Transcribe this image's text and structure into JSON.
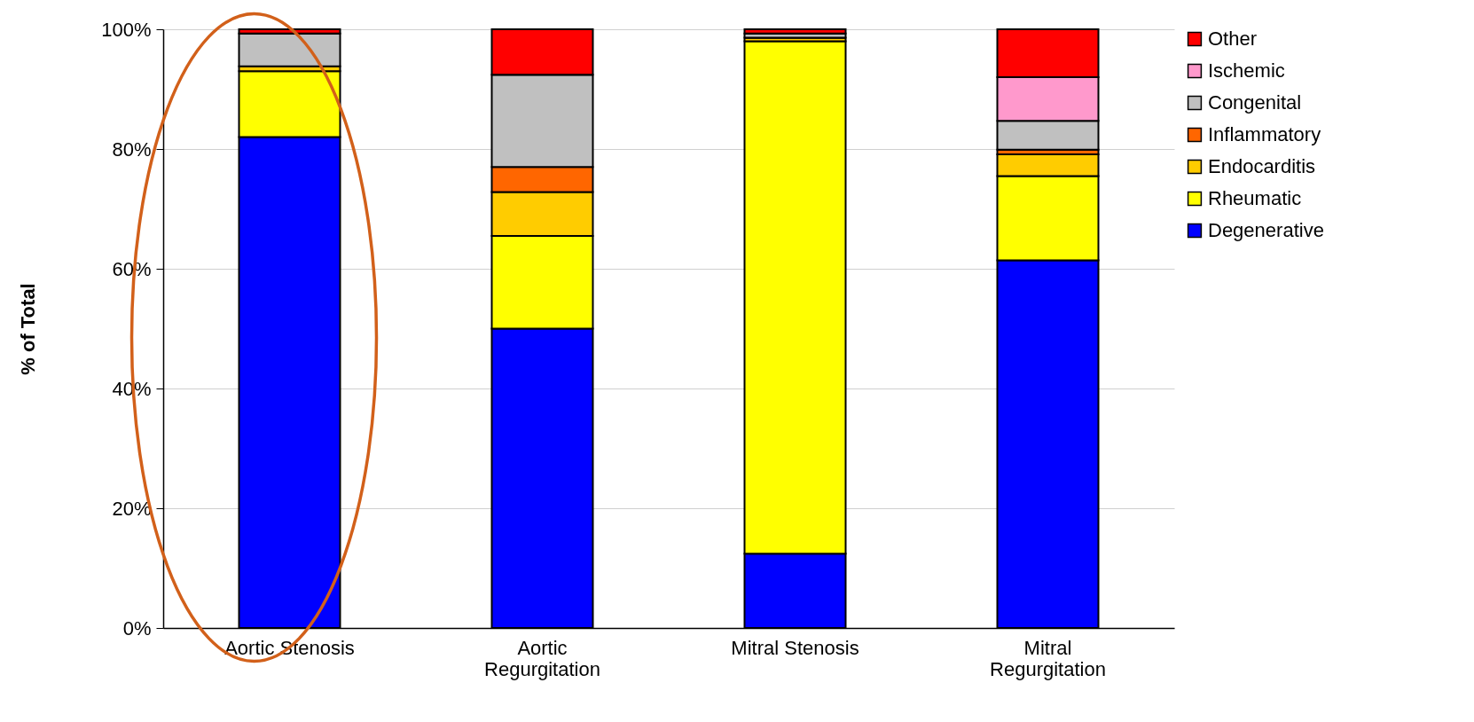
{
  "chart_data": {
    "type": "bar",
    "stacked": true,
    "ylabel": "% of Total",
    "categories": [
      "Aortic Stenosis",
      "Aortic Regurgitation",
      "Mitral Stenosis",
      "Mitral Regurgitation"
    ],
    "series": [
      {
        "name": "Degenerative",
        "color": "#0000ff",
        "values": [
          82,
          50,
          12.4,
          61.4
        ]
      },
      {
        "name": "Rheumatic",
        "color": "#ffff00",
        "values": [
          11,
          15.5,
          85.6,
          14.1
        ]
      },
      {
        "name": "Endocarditis",
        "color": "#ffcc00",
        "values": [
          0.8,
          7.3,
          0.6,
          3.6
        ]
      },
      {
        "name": "Inflammatory",
        "color": "#ff6600",
        "values": [
          null,
          4.2,
          0,
          0.8
        ]
      },
      {
        "name": "Congenital",
        "color": "#c0c0c0",
        "values": [
          5.5,
          15.4,
          0.7,
          4.8
        ]
      },
      {
        "name": "Ischemic",
        "color": "#ff99cc",
        "values": [
          0,
          0,
          0,
          7.3
        ]
      },
      {
        "name": "Other",
        "color": "#ff0000",
        "values": [
          0.7,
          7.6,
          0.7,
          8
        ]
      }
    ],
    "ylim": [
      0,
      100
    ],
    "yticks": [
      {
        "value": 0,
        "label": "0%"
      },
      {
        "value": 20,
        "label": "20%"
      },
      {
        "value": 40,
        "label": "40%"
      },
      {
        "value": 60,
        "label": "60%"
      },
      {
        "value": 80,
        "label": "80%"
      },
      {
        "value": 100,
        "label": "100%"
      }
    ],
    "grid": "y",
    "legend": "right"
  }
}
